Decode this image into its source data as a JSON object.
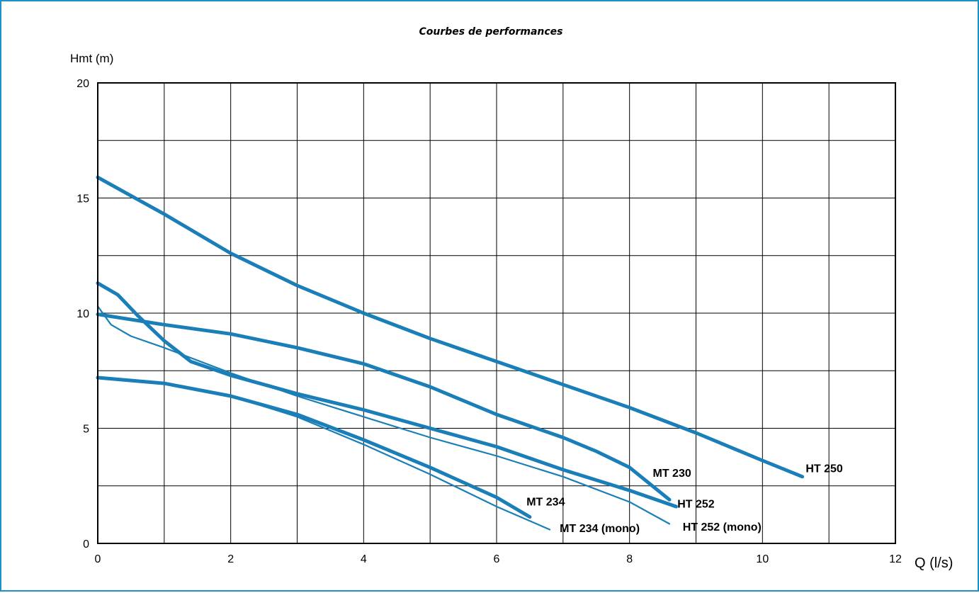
{
  "chart_data": {
    "type": "line",
    "title": "Courbes de performances",
    "xlabel": "Q (l/s)",
    "ylabel": "Hmt (m)",
    "xlim": [
      0,
      12
    ],
    "ylim": [
      0,
      20
    ],
    "x_ticks": [
      0,
      2,
      4,
      6,
      8,
      10,
      12
    ],
    "x_tick_labels": [
      "0",
      "2",
      "4",
      "6",
      "8",
      "10",
      "12"
    ],
    "y_ticks": [
      0,
      5,
      10,
      15,
      20
    ],
    "y_tick_labels": [
      "0",
      "5",
      "10",
      "15",
      "20"
    ],
    "x_grid_step": 1,
    "y_grid_step": 2.5,
    "grid": true,
    "line_color": "#1a7fb8",
    "series": [
      {
        "name": "HT 250",
        "weight": "thick",
        "x": [
          0,
          0.5,
          1,
          2,
          3,
          4,
          5,
          6,
          7,
          8,
          9,
          10,
          10.6
        ],
        "y": [
          15.9,
          15.1,
          14.3,
          12.6,
          11.2,
          10.0,
          8.9,
          7.9,
          6.9,
          5.9,
          4.8,
          3.6,
          2.9
        ]
      },
      {
        "name": "MT 230",
        "weight": "thick",
        "x": [
          0,
          1,
          2,
          3,
          4,
          5,
          6,
          7,
          7.5,
          8,
          8.6
        ],
        "y": [
          9.95,
          9.5,
          9.1,
          8.5,
          7.8,
          6.8,
          5.6,
          4.6,
          4.0,
          3.3,
          1.9
        ]
      },
      {
        "name": "HT 252",
        "weight": "thick",
        "x": [
          0,
          0.3,
          0.6,
          1,
          1.4,
          2,
          3,
          4,
          5,
          6,
          7,
          8,
          8.7
        ],
        "y": [
          11.3,
          10.8,
          9.9,
          8.8,
          7.9,
          7.3,
          6.5,
          5.8,
          5.0,
          4.2,
          3.2,
          2.3,
          1.6
        ]
      },
      {
        "name": "HT 252 (mono)",
        "weight": "thin",
        "x": [
          0,
          0.2,
          0.5,
          1,
          2,
          3,
          4,
          5,
          6,
          7,
          8,
          8.6
        ],
        "y": [
          10.3,
          9.5,
          9.0,
          8.5,
          7.4,
          6.4,
          5.5,
          4.6,
          3.8,
          2.9,
          1.8,
          0.85
        ]
      },
      {
        "name": "MT 234",
        "weight": "thick",
        "x": [
          0,
          1,
          2,
          3,
          4,
          5,
          6,
          6.5
        ],
        "y": [
          7.2,
          6.95,
          6.4,
          5.6,
          4.5,
          3.3,
          2.0,
          1.15
        ]
      },
      {
        "name": "MT 234 (mono)",
        "weight": "thin",
        "x": [
          0,
          1,
          2,
          3,
          4,
          5,
          6,
          6.8
        ],
        "y": [
          7.2,
          6.95,
          6.4,
          5.5,
          4.3,
          3.0,
          1.6,
          0.6
        ]
      }
    ],
    "series_labels": [
      {
        "name": "HT 250",
        "at": [
          10.65,
          3.1
        ]
      },
      {
        "name": "MT 230",
        "at": [
          8.35,
          2.9
        ]
      },
      {
        "name": "HT 252",
        "at": [
          8.72,
          1.55
        ]
      },
      {
        "name": "HT 252 (mono)",
        "at": [
          8.8,
          0.55
        ]
      },
      {
        "name": "MT 234",
        "at": [
          6.45,
          1.65
        ]
      },
      {
        "name": "MT 234 (mono)",
        "at": [
          6.95,
          0.5
        ]
      }
    ]
  }
}
